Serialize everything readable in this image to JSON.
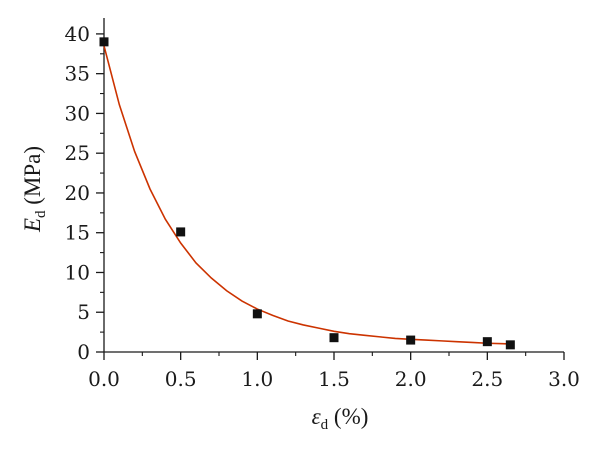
{
  "chart_data": {
    "type": "scatter",
    "title": "",
    "xlabel": {
      "symbol": "ε",
      "subscript": "d",
      "suffix": " (%)"
    },
    "ylabel": {
      "symbol": "E",
      "subscript": "d",
      "suffix": " (MPa)"
    },
    "xlim": [
      0,
      3.0
    ],
    "ylim": [
      0,
      42
    ],
    "x_ticks": [
      0.0,
      0.5,
      1.0,
      1.5,
      2.0,
      2.5,
      3.0
    ],
    "x_tick_labels": [
      "0.0",
      "0.5",
      "1.0",
      "1.5",
      "2.0",
      "2.5",
      "3.0"
    ],
    "y_ticks": [
      0,
      5,
      10,
      15,
      20,
      25,
      30,
      35,
      40
    ],
    "y_tick_labels": [
      "0",
      "5",
      "10",
      "15",
      "20",
      "25",
      "30",
      "35",
      "40"
    ],
    "grid": false,
    "series": [
      {
        "kind": "points",
        "marker": "square",
        "color": "#111111",
        "x": [
          0.0,
          0.5,
          1.0,
          1.5,
          2.0,
          2.5,
          2.65
        ],
        "y": [
          39.0,
          15.1,
          4.8,
          1.8,
          1.5,
          1.3,
          0.9
        ]
      },
      {
        "kind": "fit-curve",
        "color": "#cc3300",
        "x": [
          0.0,
          0.1,
          0.2,
          0.3,
          0.4,
          0.5,
          0.6,
          0.7,
          0.8,
          0.9,
          1.0,
          1.1,
          1.2,
          1.3,
          1.4,
          1.5,
          1.6,
          1.7,
          1.8,
          1.9,
          2.0,
          2.1,
          2.2,
          2.3,
          2.4,
          2.5,
          2.6,
          2.65
        ],
        "y": [
          38.5,
          31.1,
          25.2,
          20.5,
          16.7,
          13.7,
          11.2,
          9.3,
          7.7,
          6.4,
          5.4,
          4.6,
          3.9,
          3.4,
          3.0,
          2.6,
          2.3,
          2.1,
          1.9,
          1.7,
          1.6,
          1.5,
          1.4,
          1.3,
          1.2,
          1.1,
          1.05,
          1.0
        ]
      }
    ]
  }
}
